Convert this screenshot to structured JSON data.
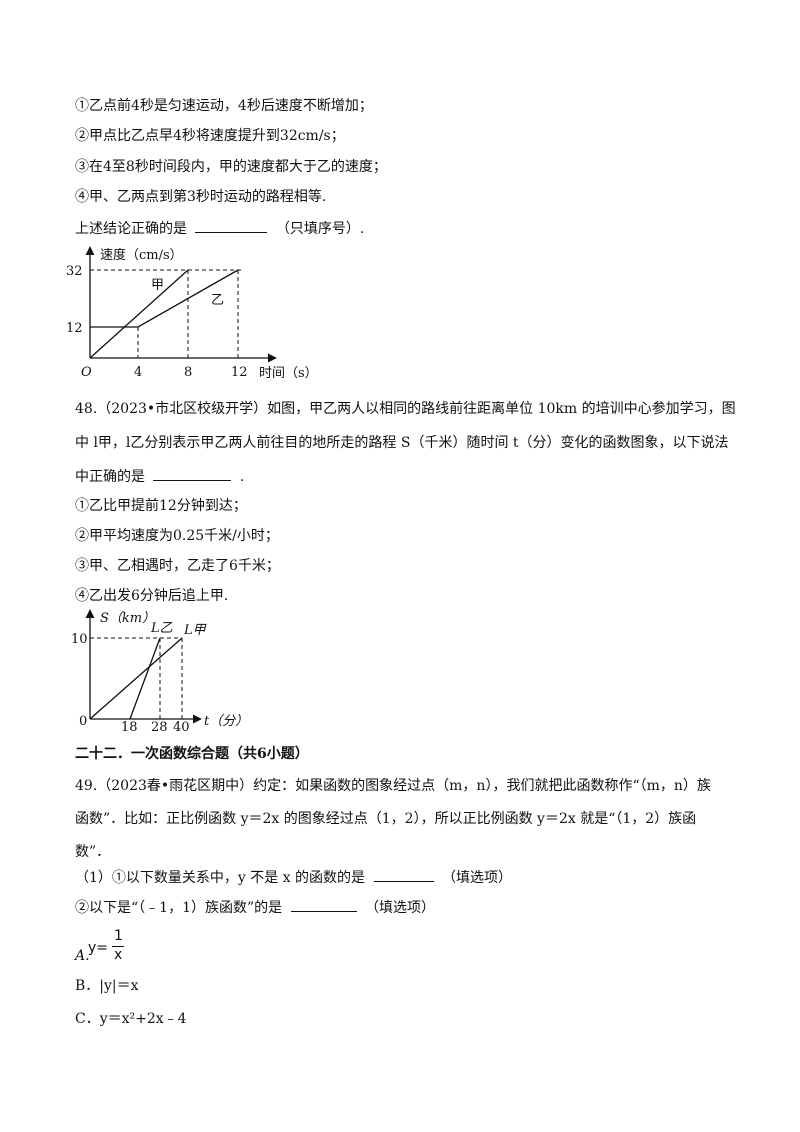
{
  "q47": {
    "items": [
      "①乙点前4秒是匀速运动，4秒后速度不断增加；",
      "②甲点比乙点早4秒将速度提升到32cm/s；",
      "③在4至8秒时间段内，甲的速度都大于乙的速度；",
      "④甲、乙两点到第3秒时运动的路程相等."
    ],
    "prompt_before": "上述结论正确的是",
    "prompt_after": "（只填序号）."
  },
  "chart1": {
    "ylabel": "速度（cm/s）",
    "xlabel": "时间（s）",
    "origin": "O",
    "ytick_32": "32",
    "ytick_12": "12",
    "xtick_4": "4",
    "xtick_8": "8",
    "xtick_12": "12",
    "label_jia": "甲",
    "label_yi": "乙"
  },
  "q48": {
    "lines": [
      "48.（2023•市北区校级开学）如图，甲乙两人以相同的路线前往距离单位 10km 的培训中心参加学习，图",
      "中 l甲，l乙分别表示甲乙两人前往目的地所走的路程 S（千米）随时间 t（分）变化的函数图象，以下说法"
    ],
    "line3_before": "中正确的是",
    "line3_after": ".",
    "items": [
      "①乙比甲提前12分钟到达；",
      "②甲平均速度为0.25千米/小时；",
      "③甲、乙相遇时，乙走了6千米；",
      "④乙出发6分钟后追上甲."
    ]
  },
  "chart2": {
    "ylabel": "S（km）",
    "xlabel": "t（分）",
    "origin": "0",
    "ytick_10": "10",
    "xtick_18": "18",
    "xtick_28": "28",
    "xtick_40": "40",
    "label_lyi": "L乙",
    "label_ljia": "L甲"
  },
  "section_heading": "二十二．一次函数综合题（共6小题）",
  "q49": {
    "lines": [
      "49.（2023春•雨花区期中）约定：如果函数的图象经过点（m，n），我们就把此函数称作“（m，n）族",
      "函数”．比如：正比例函数 y＝2x 的图象经过点（1，2），所以正比例函数 y＝2x 就是“（1，2）族函",
      "数”．"
    ],
    "sub1_before": "（1）①以下数量关系中，y 不是 x 的函数的是",
    "sub1_after": "（填选项）",
    "sub2_before": "②以下是“（﹣1，1）族函数”的是",
    "sub2_after": "（填选项）",
    "optA_label": "A.",
    "optA_y": "y=",
    "optA_num": "1",
    "optA_den": "x",
    "optB": "B．|y|＝x",
    "optC": "C．y＝x²+2x﹣4"
  }
}
